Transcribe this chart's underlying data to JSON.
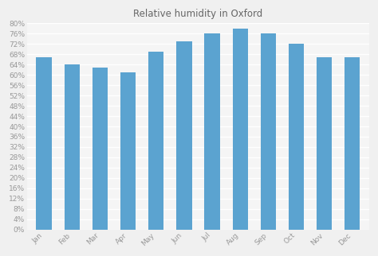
{
  "title": "Relative humidity in Oxford",
  "months": [
    "Jan",
    "Feb",
    "Mar",
    "Apr",
    "May",
    "Jun",
    "Jul",
    "Aug",
    "Sep",
    "Oct",
    "Nov",
    "Dec"
  ],
  "values": [
    67,
    64,
    63,
    61,
    69,
    73,
    76,
    78,
    76,
    72,
    67,
    67
  ],
  "bar_color": "#5ba3d0",
  "background_color": "#f0f0f0",
  "plot_bg_color": "#f5f5f5",
  "grid_color": "#ffffff",
  "title_color": "#666666",
  "tick_color": "#999999",
  "ylim": [
    0,
    80
  ],
  "ytick_step": 4,
  "title_fontsize": 8.5,
  "tick_fontsize": 6.5,
  "bar_width": 0.55
}
